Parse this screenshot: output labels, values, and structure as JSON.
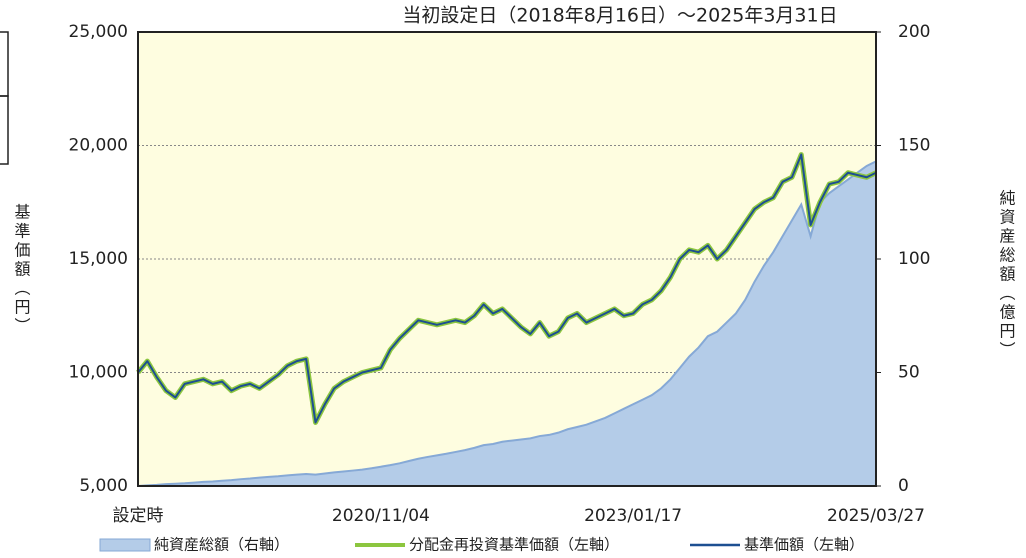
{
  "chart_data": {
    "type": "line",
    "title": "当初設定日（2018年8月16日）〜2025年3月31日",
    "ylabel": "基準価額（円）",
    "y2label": "純資産総額（億円）",
    "categories": [
      "設定時",
      null,
      null,
      null,
      null,
      null,
      null,
      null,
      null,
      null,
      null,
      null,
      null,
      null,
      null,
      null,
      null,
      null,
      null,
      null,
      null,
      null,
      null,
      null,
      null,
      null,
      "2020/11/04",
      null,
      null,
      null,
      null,
      null,
      null,
      null,
      null,
      null,
      null,
      null,
      null,
      null,
      null,
      null,
      null,
      null,
      null,
      null,
      null,
      null,
      null,
      null,
      null,
      null,
      null,
      "2023/01/17",
      null,
      null,
      null,
      null,
      null,
      null,
      null,
      null,
      null,
      null,
      null,
      null,
      null,
      null,
      null,
      null,
      null,
      null,
      null,
      null,
      null,
      null,
      null,
      null,
      null,
      "2025/03/27"
    ],
    "series": [
      {
        "name": "純資産総額（右軸）",
        "style": "area",
        "axis": "y2",
        "color": "#b4cce8",
        "edge": "#86a9d6",
        "values": [
          0,
          0.3,
          0.5,
          0.8,
          1,
          1.2,
          1.5,
          1.8,
          2,
          2.3,
          2.6,
          3,
          3.3,
          3.7,
          4,
          4.3,
          4.7,
          5,
          5.3,
          5,
          5.5,
          6,
          6.4,
          6.8,
          7.2,
          7.8,
          8.5,
          9.2,
          10,
          11,
          12,
          12.8,
          13.5,
          14.2,
          15,
          15.8,
          16.8,
          18,
          18.5,
          19.5,
          20,
          20.5,
          21,
          22,
          22.5,
          23.5,
          25,
          26,
          27,
          28.5,
          30,
          32,
          34,
          36,
          38,
          40,
          43,
          47,
          52,
          57,
          61,
          66,
          68,
          72,
          76,
          82,
          90,
          97,
          103,
          110,
          117,
          124,
          110,
          125,
          129,
          132,
          135,
          138,
          141,
          143
        ]
      },
      {
        "name": "分配金再投資基準価額（左軸）",
        "style": "line",
        "width": 5,
        "color": "#8cc63f",
        "values": [
          10000,
          10500,
          9800,
          9200,
          8900,
          9500,
          9600,
          9700,
          9500,
          9600,
          9200,
          9400,
          9500,
          9300,
          9600,
          9900,
          10300,
          10500,
          10600,
          7800,
          8600,
          9300,
          9600,
          9800,
          10000,
          10100,
          10200,
          11000,
          11500,
          11900,
          12300,
          12200,
          12100,
          12200,
          12300,
          12200,
          12500,
          13000,
          12600,
          12800,
          12400,
          12000,
          11700,
          12200,
          11600,
          11800,
          12400,
          12600,
          12200,
          12400,
          12600,
          12800,
          12500,
          12600,
          13000,
          13200,
          13600,
          14200,
          15000,
          15400,
          15300,
          15600,
          15000,
          15400,
          16000,
          16600,
          17200,
          17500,
          17700,
          18400,
          18600,
          19600,
          16500,
          17500,
          18300,
          18400,
          18800,
          18700,
          18600,
          18800
        ]
      },
      {
        "name": "基準価額（左軸）",
        "style": "line",
        "width": 2,
        "color": "#1d4f91",
        "values": [
          10000,
          10500,
          9800,
          9200,
          8900,
          9500,
          9600,
          9700,
          9500,
          9600,
          9200,
          9400,
          9500,
          9300,
          9600,
          9900,
          10300,
          10500,
          10600,
          7800,
          8600,
          9300,
          9600,
          9800,
          10000,
          10100,
          10200,
          11000,
          11500,
          11900,
          12300,
          12200,
          12100,
          12200,
          12300,
          12200,
          12500,
          13000,
          12600,
          12800,
          12400,
          12000,
          11700,
          12200,
          11600,
          11800,
          12400,
          12600,
          12200,
          12400,
          12600,
          12800,
          12500,
          12600,
          13000,
          13200,
          13600,
          14200,
          15000,
          15400,
          15300,
          15600,
          15000,
          15400,
          16000,
          16600,
          17200,
          17500,
          17700,
          18400,
          18600,
          19600,
          16500,
          17500,
          18300,
          18400,
          18800,
          18700,
          18600,
          18800
        ]
      }
    ],
    "ylim": [
      5000,
      25000
    ],
    "yticks": [
      {
        "value": 5000,
        "label": "5,000"
      },
      {
        "value": 10000,
        "label": "10,000"
      },
      {
        "value": 15000,
        "label": "15,000"
      },
      {
        "value": 20000,
        "label": "20,000"
      },
      {
        "value": 25000,
        "label": "25,000"
      }
    ],
    "y2lim": [
      0,
      200
    ],
    "y2ticks": [
      0,
      50,
      100,
      150,
      200
    ],
    "grid": true,
    "background": "#fefde0"
  }
}
